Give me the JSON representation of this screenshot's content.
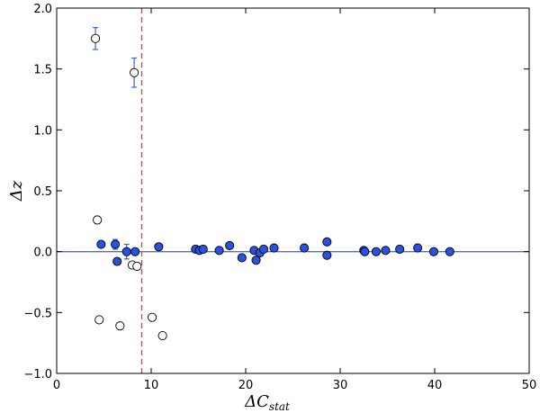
{
  "chart_data": {
    "type": "scatter",
    "title": "",
    "xlabel_main": "ΔC",
    "xlabel_sub": "stat",
    "ylabel": "Δz",
    "xlim": [
      0,
      50
    ],
    "ylim": [
      -1.0,
      2.0
    ],
    "xticks": [
      0,
      10,
      20,
      30,
      40,
      50
    ],
    "yticks": [
      -1.0,
      -0.5,
      0.0,
      0.5,
      1.0,
      1.5,
      2.0
    ],
    "xtick_labels": [
      "0",
      "10",
      "20",
      "30",
      "40",
      "50"
    ],
    "ytick_labels": [
      "−1.0",
      "−0.5",
      "0.0",
      "0.5",
      "1.0",
      "1.5",
      "2.0"
    ],
    "grid": false,
    "reference_lines": {
      "horizontal_y": 0.0,
      "horizontal_color": "#4a6fd6",
      "vertical_x": 9.0,
      "vertical_color": "#e8323c",
      "vertical_style": "dashed"
    },
    "colors": {
      "filled_marker": "#2952e0",
      "open_marker": "#ffffff",
      "marker_edge": "#000000",
      "error_bar": "#3a62d8"
    },
    "series": [
      {
        "marker": "filled",
        "x": [
          4.7,
          6.2,
          6.4,
          7.4,
          8.3,
          10.8,
          14.7,
          15.1,
          15.5,
          17.2,
          18.3,
          19.6,
          20.9,
          21.1,
          21.5,
          21.9,
          23.0,
          26.2,
          28.6,
          28.6,
          32.5,
          32.6,
          33.8,
          34.8,
          36.3,
          38.2,
          39.9,
          41.6
        ],
        "y": [
          0.06,
          0.06,
          -0.08,
          0.0,
          0.0,
          0.04,
          0.02,
          0.01,
          0.02,
          0.01,
          0.05,
          -0.05,
          0.01,
          -0.07,
          -0.01,
          0.02,
          0.03,
          0.03,
          0.08,
          -0.03,
          0.01,
          0.0,
          0.0,
          0.01,
          0.02,
          0.03,
          0.0,
          0.0
        ],
        "y_err": [
          0.0,
          0.04,
          0.0,
          0.06,
          0.0,
          0.0,
          0.0,
          0.0,
          0.0,
          0.0,
          0.0,
          0.0,
          0.0,
          0.0,
          0.0,
          0.0,
          0.0,
          0.0,
          0.0,
          0.0,
          0.0,
          0.0,
          0.0,
          0.0,
          0.0,
          0.0,
          0.0,
          0.0
        ]
      },
      {
        "marker": "open",
        "x": [
          4.1,
          8.2,
          4.3,
          4.5,
          6.7,
          8.0,
          8.5,
          10.1,
          11.2
        ],
        "y": [
          1.75,
          1.47,
          0.26,
          -0.56,
          -0.61,
          -0.11,
          -0.12,
          -0.54,
          -0.69
        ],
        "y_err": [
          0.09,
          0.12,
          0.03,
          0.0,
          0.0,
          0.0,
          0.0,
          0.0,
          0.0
        ]
      }
    ]
  }
}
